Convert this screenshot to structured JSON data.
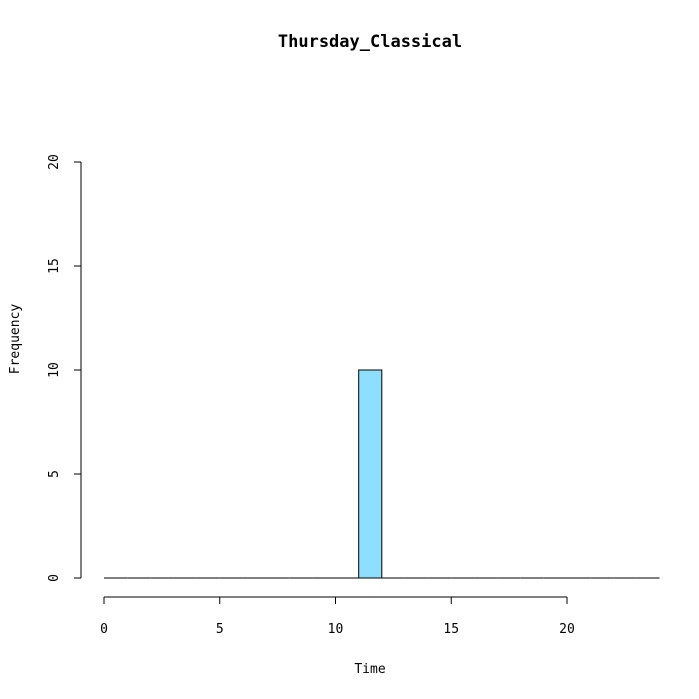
{
  "chart_data": {
    "type": "bar",
    "title": "Thursday_Classical",
    "xlabel": "Time",
    "ylabel": "Frequency",
    "xlim": [
      0,
      24
    ],
    "ylim": [
      0,
      20
    ],
    "x_ticks": [
      0,
      5,
      10,
      15,
      20
    ],
    "y_ticks": [
      0,
      5,
      10,
      15,
      20
    ],
    "bin_width": 1,
    "bins": [
      {
        "start": 0,
        "end": 1,
        "count": 0
      },
      {
        "start": 1,
        "end": 2,
        "count": 0
      },
      {
        "start": 2,
        "end": 3,
        "count": 0
      },
      {
        "start": 3,
        "end": 4,
        "count": 0
      },
      {
        "start": 4,
        "end": 5,
        "count": 0
      },
      {
        "start": 5,
        "end": 6,
        "count": 0
      },
      {
        "start": 6,
        "end": 7,
        "count": 0
      },
      {
        "start": 7,
        "end": 8,
        "count": 0
      },
      {
        "start": 8,
        "end": 9,
        "count": 0
      },
      {
        "start": 9,
        "end": 10,
        "count": 0
      },
      {
        "start": 10,
        "end": 11,
        "count": 0
      },
      {
        "start": 11,
        "end": 12,
        "count": 10
      },
      {
        "start": 12,
        "end": 13,
        "count": 0
      },
      {
        "start": 13,
        "end": 14,
        "count": 0
      },
      {
        "start": 14,
        "end": 15,
        "count": 0
      },
      {
        "start": 15,
        "end": 16,
        "count": 0
      },
      {
        "start": 16,
        "end": 17,
        "count": 0
      },
      {
        "start": 17,
        "end": 18,
        "count": 0
      },
      {
        "start": 18,
        "end": 19,
        "count": 0
      },
      {
        "start": 19,
        "end": 20,
        "count": 0
      },
      {
        "start": 20,
        "end": 21,
        "count": 0
      },
      {
        "start": 21,
        "end": 22,
        "count": 0
      },
      {
        "start": 22,
        "end": 23,
        "count": 0
      },
      {
        "start": 23,
        "end": 24,
        "count": 0
      }
    ],
    "bar_color": "#8EDFFF",
    "grid": false,
    "legend": "none"
  }
}
